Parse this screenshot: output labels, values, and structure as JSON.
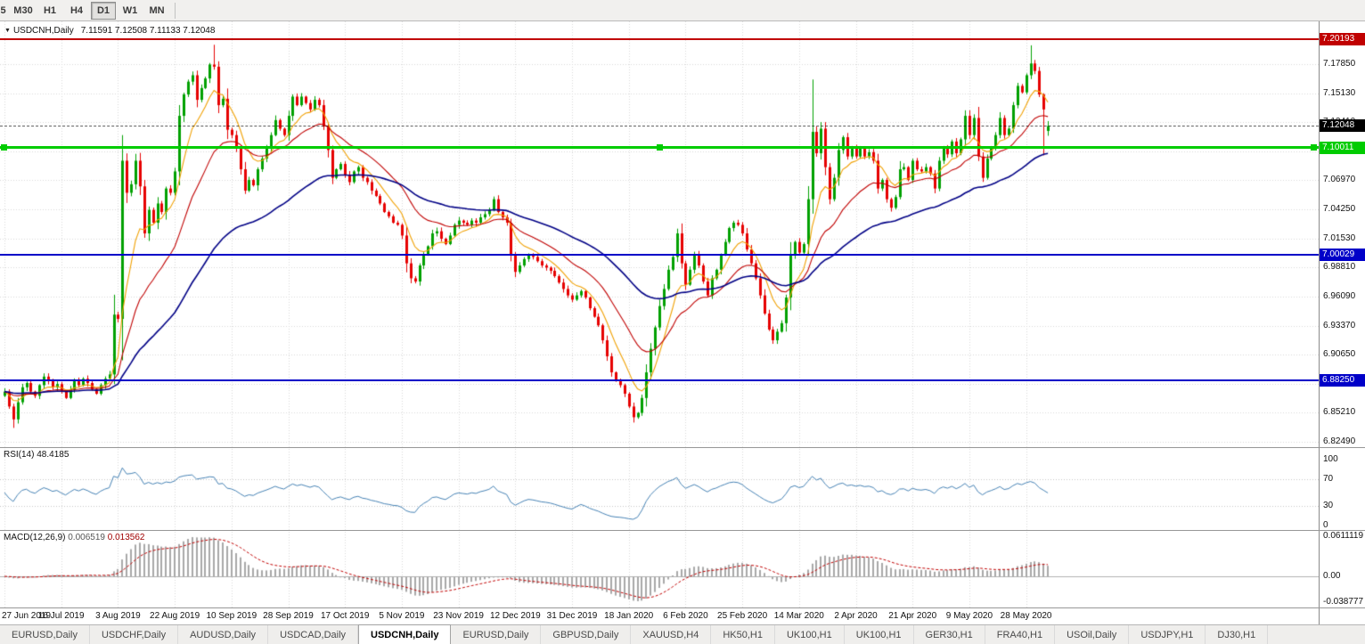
{
  "toolbar": {
    "timeframes": [
      {
        "label": "5",
        "clipped": true
      },
      {
        "label": "M30"
      },
      {
        "label": "H1"
      },
      {
        "label": "H4"
      },
      {
        "label": "D1",
        "active": true
      },
      {
        "label": "W1"
      },
      {
        "label": "MN"
      }
    ]
  },
  "chart": {
    "symbol_info": "USDCNH,Daily",
    "ohlc_text": "7.11591 7.12508 7.11133 7.12048",
    "price_axis": [
      "7.17850",
      "7.15130",
      "7.12410",
      "7.09690",
      "7.06970",
      "7.04250",
      "7.01530",
      "6.98810",
      "6.96090",
      "6.93370",
      "6.90650",
      "6.87930",
      "6.85210",
      "6.82490"
    ],
    "hlines": [
      {
        "name": "resistance-red",
        "label": "7.20193",
        "price": 7.20193,
        "color": "#c00000",
        "width": 2,
        "selected": false
      },
      {
        "name": "support-green",
        "label": "7.10011",
        "price": 7.10011,
        "color": "#00cc00",
        "width": 3,
        "selected": true
      },
      {
        "name": "pivot-blue-7000",
        "label": "7.00029",
        "price": 7.00029,
        "color": "#0000c8",
        "width": 2,
        "selected": false
      },
      {
        "name": "support-blue-6882",
        "label": "6.88250",
        "price": 6.8825,
        "color": "#0000c8",
        "width": 2,
        "selected": false
      }
    ],
    "last_price": {
      "label": "7.12048",
      "price": 7.12048,
      "bg": "#000000"
    },
    "dates": [
      "27 Jun 2019",
      "16 Jul 2019",
      "3 Aug 2019",
      "22 Aug 2019",
      "10 Sep 2019",
      "28 Sep 2019",
      "17 Oct 2019",
      "5 Nov 2019",
      "23 Nov 2019",
      "12 Dec 2019",
      "31 Dec 2019",
      "18 Jan 2020",
      "6 Feb 2020",
      "25 Feb 2020",
      "14 Mar 2020",
      "2 Apr 2020",
      "21 Apr 2020",
      "9 May 2020",
      "28 May 2020"
    ]
  },
  "rsi": {
    "label": "RSI(14)",
    "value": "48.4185",
    "ticks": [
      "100",
      "70",
      "30",
      "0"
    ],
    "levels": [
      70,
      30
    ]
  },
  "macd": {
    "label": "MACD(12,26,9)",
    "value_main": "0.006519",
    "value_signal": "0.013562",
    "ticks": [
      "0.0611119",
      "0.00",
      "-0.038777"
    ]
  },
  "tabs": [
    {
      "label": "EURUSD,Daily"
    },
    {
      "label": "USDCHF,Daily"
    },
    {
      "label": "AUDUSD,Daily"
    },
    {
      "label": "USDCAD,Daily"
    },
    {
      "label": "USDCNH,Daily",
      "active": true
    },
    {
      "label": "EURUSD,Daily"
    },
    {
      "label": "GBPUSD,Daily"
    },
    {
      "label": "XAUUSD,H4"
    },
    {
      "label": "HK50,H1"
    },
    {
      "label": "UK100,H1"
    },
    {
      "label": "UK100,H1"
    },
    {
      "label": "GER30,H1"
    },
    {
      "label": "FRA40,H1"
    },
    {
      "label": "USOil,Daily"
    },
    {
      "label": "USDJPY,H1"
    },
    {
      "label": "DJ30,H1"
    }
  ],
  "chart_data": {
    "type": "candlestick",
    "symbol": "USDCNH",
    "timeframe": "Daily",
    "last_ohlc": {
      "open": 7.11591,
      "high": 7.12508,
      "low": 7.11133,
      "close": 7.12048
    },
    "ylim": [
      6.82,
      7.2184
    ],
    "grid_step": 0.0272,
    "closes": [
      6.872,
      6.858,
      6.846,
      6.862,
      6.876,
      6.88,
      6.872,
      6.868,
      6.878,
      6.886,
      6.882,
      6.876,
      6.879,
      6.872,
      6.866,
      6.874,
      6.882,
      6.878,
      6.884,
      6.88,
      6.874,
      6.87,
      6.878,
      6.884,
      6.888,
      6.944,
      6.94,
      7.088,
      7.058,
      7.066,
      7.088,
      7.064,
      7.02,
      7.042,
      7.03,
      7.048,
      7.04,
      7.062,
      7.058,
      7.078,
      7.13,
      7.15,
      7.162,
      7.168,
      7.145,
      7.156,
      7.165,
      7.178,
      7.176,
      7.14,
      7.146,
      7.117,
      7.112,
      7.1,
      7.08,
      7.06,
      7.07,
      7.065,
      7.08,
      7.09,
      7.1,
      7.112,
      7.126,
      7.118,
      7.112,
      7.13,
      7.148,
      7.14,
      7.148,
      7.142,
      7.136,
      7.145,
      7.14,
      7.12,
      7.098,
      7.072,
      7.08,
      7.085,
      7.075,
      7.068,
      7.078,
      7.082,
      7.072,
      7.068,
      7.06,
      7.055,
      7.048,
      7.04,
      7.036,
      7.03,
      7.028,
      7.018,
      6.992,
      6.978,
      6.975,
      6.99,
      7.0,
      7.008,
      7.02,
      7.022,
      7.015,
      7.01,
      7.018,
      7.028,
      7.032,
      7.03,
      7.028,
      7.032,
      7.03,
      7.035,
      7.038,
      7.042,
      7.052,
      7.04,
      7.035,
      7.03,
      7.0,
      6.984,
      6.99,
      6.996,
      7.0,
      6.998,
      6.994,
      6.99,
      6.988,
      6.985,
      6.98,
      6.974,
      6.968,
      6.962,
      6.958,
      6.962,
      6.966,
      6.96,
      6.95,
      6.942,
      6.934,
      6.92,
      6.905,
      6.89,
      6.882,
      6.878,
      6.87,
      6.858,
      6.848,
      6.852,
      6.866,
      6.89,
      6.912,
      6.932,
      6.952,
      6.968,
      6.986,
      6.998,
      7.02,
      6.992,
      6.972,
      6.986,
      7.0,
      6.99,
      6.975,
      6.962,
      6.978,
      6.986,
      7.0,
      7.012,
      7.025,
      7.03,
      7.028,
      7.02,
      7.005,
      6.992,
      6.978,
      6.962,
      6.945,
      6.93,
      6.92,
      6.928,
      6.936,
      6.96,
      7.0,
      7.012,
      7.002,
      7.01,
      7.052,
      7.115,
      7.095,
      7.118,
      7.082,
      7.052,
      7.072,
      7.098,
      7.11,
      7.092,
      7.1,
      7.092,
      7.1,
      7.092,
      7.096,
      7.088,
      7.062,
      7.07,
      7.052,
      7.044,
      7.054,
      7.08,
      7.082,
      7.07,
      7.088,
      7.08,
      7.078,
      7.082,
      7.076,
      7.062,
      7.088,
      7.1,
      7.094,
      7.106,
      7.095,
      7.108,
      7.13,
      7.112,
      7.128,
      7.092,
      7.072,
      7.09,
      7.1,
      7.112,
      7.128,
      7.112,
      7.118,
      7.14,
      7.158,
      7.152,
      7.168,
      7.179,
      7.172,
      7.15,
      7.136,
      7.1205
    ],
    "wick_overrides": {
      "2": {
        "low": 6.838
      },
      "27": {
        "high": 7.112
      },
      "48": {
        "high": 7.1965
      },
      "144": {
        "low": 6.843
      },
      "185": {
        "high": 7.164
      },
      "235": {
        "high": 7.196
      },
      "238": {
        "low": 7.093
      },
      "239": {
        "open": 7.11591,
        "high": 7.12508,
        "low": 7.11133,
        "close": 7.12048
      }
    },
    "date_tick_indices": [
      0,
      13,
      26,
      39,
      52,
      65,
      78,
      91,
      104,
      117,
      130,
      143,
      156,
      169,
      182,
      195,
      208,
      221,
      234
    ],
    "moving_averages": [
      {
        "name": "ma-fast",
        "period": 8,
        "color": "#f0a000"
      },
      {
        "name": "ma-mid",
        "period": 21,
        "color": "#c00000"
      },
      {
        "name": "ma-slow",
        "period": 55,
        "color": "#000085"
      }
    ],
    "rsi": {
      "period": 14,
      "last": 48.4185,
      "ylim": [
        0,
        100
      ],
      "color": "#4682b4"
    },
    "macd": {
      "fast": 12,
      "slow": 26,
      "signal": 9,
      "last_main": 0.006519,
      "last_signal": 0.013562,
      "ylim": [
        -0.043,
        0.066
      ],
      "hist_color": "#a8a8a8",
      "signal_color": "#c00000"
    },
    "colors": {
      "up": "#00a000",
      "down": "#e60000",
      "grid": "#d8d8d8"
    }
  }
}
